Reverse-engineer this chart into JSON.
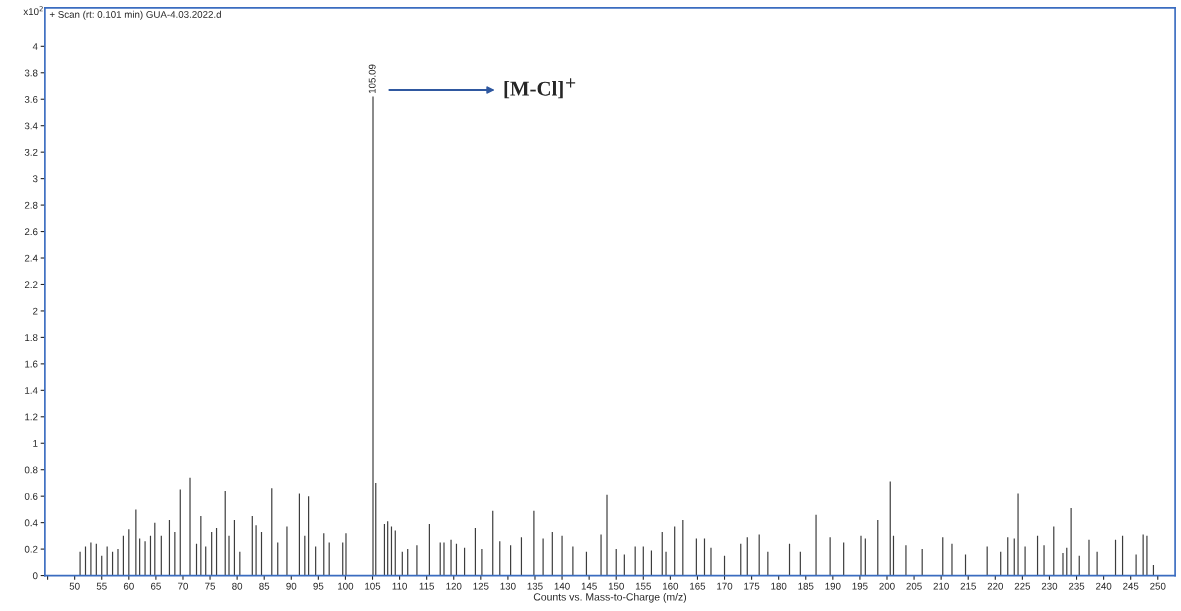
{
  "chart_data": {
    "type": "bar",
    "title": "+ Scan (rt: 0.101 min) GUA-4.03.2022.d",
    "xlabel": "Counts vs. Mass-to-Charge (m/z)",
    "annotations": [
      "x10$^{2}$",
      {
        "text": "105.09",
        "x": 105.09,
        "y": 3.62
      },
      "[M-Cl]$^{+}$"
    ],
    "x": [
      51,
      52,
      53,
      54,
      55,
      56,
      57,
      58,
      59,
      60,
      61.3,
      62,
      63,
      64,
      64.8,
      66,
      67.5,
      68.5,
      69.5,
      71.3,
      72.5,
      73.3,
      74.2,
      75.3,
      76.2,
      77.8,
      78.5,
      79.5,
      80.5,
      82.8,
      83.5,
      84.5,
      86.4,
      87.5,
      89.2,
      91.5,
      92.5,
      93.2,
      94.5,
      96,
      97,
      99.5,
      100.1,
      105.09,
      105.6,
      107.2,
      107.8,
      108.5,
      109.2,
      110.5,
      111.5,
      113.2,
      115.5,
      117.5,
      118.2,
      119.5,
      120.5,
      122,
      124,
      125.2,
      127.2,
      128.5,
      130.5,
      132.5,
      134.8,
      136.5,
      138.2,
      140,
      142,
      144.5,
      147.2,
      148.3,
      150,
      151.5,
      153.5,
      155,
      156.5,
      158.5,
      159.2,
      160.8,
      162.3,
      164.8,
      166.3,
      167.5,
      170,
      173,
      174.2,
      176.4,
      178,
      182,
      184,
      186.9,
      189.5,
      192,
      195.2,
      196,
      198.3,
      200.6,
      201.2,
      203.5,
      206.5,
      210.3,
      212,
      214.5,
      218.5,
      221,
      222.3,
      223.5,
      224.2,
      225.5,
      227.8,
      229,
      230.8,
      232.5,
      233.2,
      234,
      235.5,
      237.3,
      238.8,
      242.2,
      243.5,
      246,
      247.3,
      248,
      249.2
    ],
    "series": [
      {
        "color": "#3c3c3c",
        "values": [
          0.18,
          0.22,
          0.25,
          0.24,
          0.15,
          0.22,
          0.18,
          0.2,
          0.3,
          0.35,
          0.5,
          0.28,
          0.26,
          0.3,
          0.4,
          0.3,
          0.42,
          0.33,
          0.65,
          0.74,
          0.24,
          0.45,
          0.22,
          0.33,
          0.36,
          0.64,
          0.3,
          0.42,
          0.18,
          0.45,
          0.38,
          0.33,
          0.66,
          0.25,
          0.37,
          0.62,
          0.3,
          0.6,
          0.22,
          0.32,
          0.25,
          0.25,
          0.32,
          3.62,
          0.7,
          0.39,
          0.41,
          0.37,
          0.34,
          0.18,
          0.2,
          0.23,
          0.39,
          0.25,
          0.25,
          0.27,
          0.24,
          0.21,
          0.36,
          0.2,
          0.49,
          0.26,
          0.23,
          0.29,
          0.49,
          0.28,
          0.33,
          0.3,
          0.22,
          0.18,
          0.31,
          0.61,
          0.2,
          0.16,
          0.22,
          0.22,
          0.19,
          0.33,
          0.18,
          0.37,
          0.42,
          0.28,
          0.28,
          0.21,
          0.15,
          0.24,
          0.29,
          0.31,
          0.18,
          0.24,
          0.18,
          0.46,
          0.29,
          0.25,
          0.3,
          0.28,
          0.42,
          0.71,
          0.3,
          0.23,
          0.2,
          0.29,
          0.24,
          0.16,
          0.22,
          0.18,
          0.29,
          0.28,
          0.62,
          0.22,
          0.3,
          0.23,
          0.37,
          0.17,
          0.21,
          0.51,
          0.15,
          0.27,
          0.18,
          0.27,
          0.3,
          0.16,
          0.31,
          0.3,
          0.08
        ]
      }
    ],
    "xlim": [
      44.5,
      253.2
    ],
    "ylim": [
      0,
      4.29
    ],
    "xticks": [
      {
        "value": 45,
        "label": null
      },
      50,
      55,
      60,
      65,
      70,
      75,
      80,
      85,
      90,
      95,
      100,
      105,
      110,
      115,
      120,
      125,
      130,
      135,
      140,
      145,
      150,
      155,
      160,
      165,
      170,
      175,
      180,
      185,
      190,
      195,
      200,
      205,
      210,
      215,
      220,
      225,
      230,
      235,
      240,
      245,
      250
    ],
    "yticks": [
      0,
      0.2,
      0.4,
      0.6,
      0.8,
      1,
      1.2,
      1.4,
      1.6,
      1.8,
      2,
      2.2,
      2.4,
      2.6,
      2.8,
      3,
      3.2,
      3.4,
      3.6,
      3.8,
      4
    ],
    "grid": false,
    "legend": false
  }
}
